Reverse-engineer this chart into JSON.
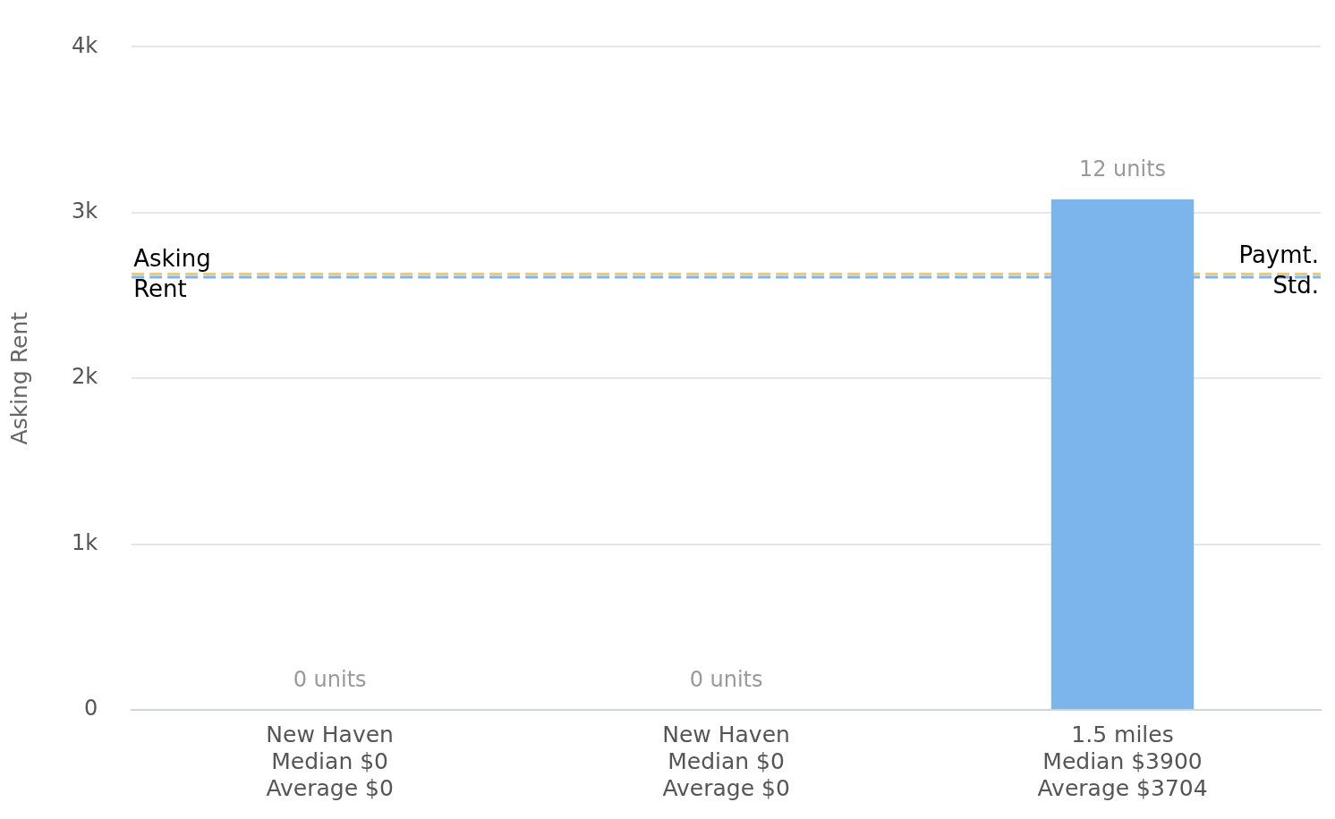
{
  "chart_data": {
    "type": "bar",
    "ylabel": "Asking Rent",
    "categories": [
      "New Haven\nMedian $0\nAverage $0",
      "New Haven\nMedian $0\nAverage $0",
      "1.5 miles\nMedian $3900\nAverage $3704"
    ],
    "values": [
      0,
      0,
      3080
    ],
    "color": "#7cb5ec",
    "annotations": [
      "0 units",
      "0 units",
      "12 units"
    ],
    "ylim": [
      0,
      4000
    ],
    "yticks": [
      {
        "value": 0,
        "label": "0"
      },
      {
        "value": 1000,
        "label": "1k"
      },
      {
        "value": 2000,
        "label": "2k"
      },
      {
        "value": 3000,
        "label": "3k"
      },
      {
        "value": 4000,
        "label": "4k"
      }
    ],
    "grid": "y",
    "legend": false,
    "ref_lines": [
      {
        "axis": "y",
        "value": 2610,
        "label": "Asking Rent",
        "color": "#7cb5ec",
        "line_style": "dashed"
      },
      {
        "axis": "y",
        "value": 2630,
        "label": "Paymt. Std.",
        "color": "#f0c87a",
        "line_style": "dashed"
      }
    ]
  }
}
